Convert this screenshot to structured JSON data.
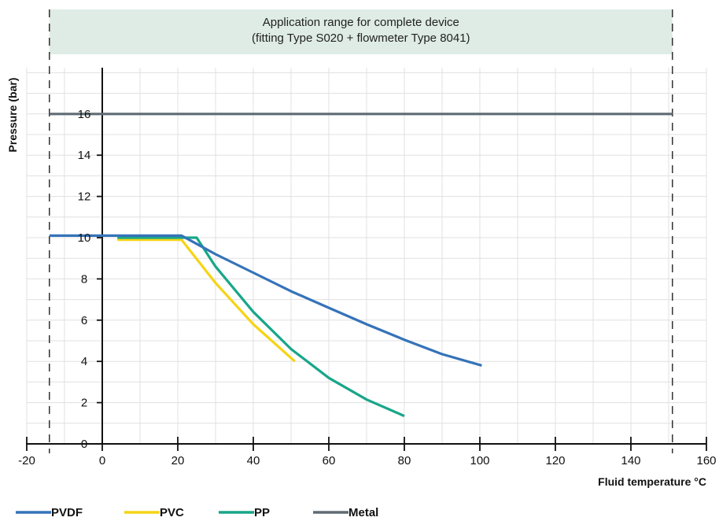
{
  "chart_data": {
    "type": "line",
    "title": "",
    "banner": {
      "line1": "Application range for complete device",
      "line2": "(fitting Type S020 + flowmeter Type 8041)",
      "x_range": [
        -14,
        151
      ],
      "color": "#dfece6"
    },
    "xlabel": "Fluid temperature °C",
    "ylabel": "Pressure (bar)",
    "xlim": [
      -20,
      160
    ],
    "ylim": [
      0,
      16
    ],
    "x_ticks": [
      -20,
      0,
      20,
      40,
      60,
      80,
      100,
      120,
      140,
      160
    ],
    "y_ticks": [
      0,
      2,
      4,
      6,
      8,
      10,
      12,
      14,
      16
    ],
    "x_ticks_text": [
      "-20",
      "0",
      "20",
      "40",
      "60",
      "80",
      "100",
      "120",
      "140",
      "160"
    ],
    "y_ticks_text": [
      "0",
      "2",
      "4",
      "6",
      "8",
      "10",
      "12",
      "14",
      "16"
    ],
    "range_limits": [
      -14,
      151
    ],
    "grid": true,
    "legend_position": "bottom-left",
    "series": [
      {
        "name": "PVDF",
        "color": "#3573b9",
        "x": [
          -14,
          21,
          30,
          40,
          50,
          60,
          70,
          80,
          90,
          100.5
        ],
        "y": [
          10.1,
          10.1,
          9.2,
          8.3,
          7.4,
          6.6,
          5.8,
          5.05,
          4.35,
          3.8
        ]
      },
      {
        "name": "PVC",
        "color": "#f5d416",
        "x": [
          4,
          21,
          30,
          40,
          51
        ],
        "y": [
          9.9,
          9.9,
          7.8,
          5.8,
          4.0
        ]
      },
      {
        "name": "PP",
        "color": "#18a689",
        "x": [
          4,
          25,
          30,
          40,
          50,
          60,
          70,
          80
        ],
        "y": [
          10.0,
          10.0,
          8.6,
          6.4,
          4.6,
          3.2,
          2.15,
          1.35
        ]
      },
      {
        "name": "Metal",
        "color": "#5f6b73",
        "x": [
          -14,
          151
        ],
        "y": [
          16,
          16
        ]
      }
    ]
  }
}
